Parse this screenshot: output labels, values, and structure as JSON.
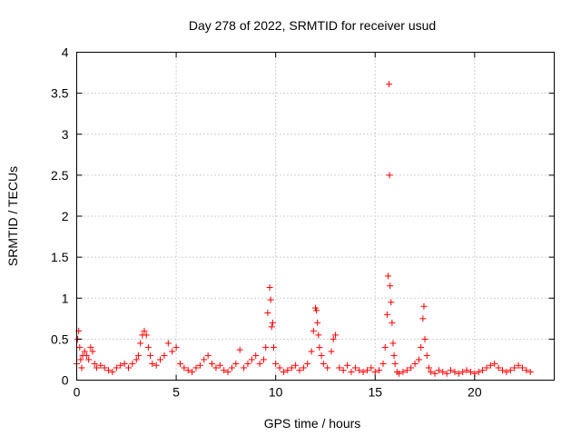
{
  "chart_data": {
    "type": "scatter",
    "title": "Day 278 of 2022, SRMTID for receiver usud",
    "xlabel": "GPS time / hours",
    "ylabel": "SRMTID / TECUs",
    "xlim": [
      0,
      24
    ],
    "ylim": [
      0,
      4
    ],
    "xticks": [
      0,
      5,
      10,
      15,
      20
    ],
    "xtick_labels": [
      "0",
      "5",
      "10",
      "15",
      "20"
    ],
    "yticks": [
      0,
      0.5,
      1,
      1.5,
      2,
      2.5,
      3,
      3.5,
      4
    ],
    "ytick_labels": [
      "0",
      "0.5",
      "1",
      "1.5",
      "2",
      "2.5",
      "3",
      "3.5",
      "4"
    ],
    "grid": true,
    "marker": "+",
    "color": "#ff0000",
    "series": [
      {
        "name": "SRMTID",
        "x": [
          0.0,
          0.05,
          0.1,
          0.15,
          0.2,
          0.25,
          0.3,
          0.4,
          0.5,
          0.6,
          0.7,
          0.8,
          0.9,
          1.0,
          1.2,
          1.4,
          1.6,
          1.8,
          2.0,
          2.2,
          2.4,
          2.6,
          2.8,
          3.0,
          3.1,
          3.2,
          3.3,
          3.4,
          3.5,
          3.6,
          3.7,
          3.8,
          4.0,
          4.2,
          4.4,
          4.6,
          4.8,
          5.0,
          5.2,
          5.4,
          5.6,
          5.8,
          6.0,
          6.2,
          6.4,
          6.6,
          6.8,
          7.0,
          7.2,
          7.4,
          7.6,
          7.8,
          8.0,
          8.2,
          8.4,
          8.6,
          8.8,
          9.0,
          9.2,
          9.4,
          9.5,
          9.6,
          9.7,
          9.75,
          9.8,
          9.85,
          9.9,
          10.0,
          10.2,
          10.4,
          10.6,
          10.8,
          11.0,
          11.2,
          11.4,
          11.6,
          11.8,
          11.9,
          12.0,
          12.05,
          12.1,
          12.15,
          12.2,
          12.3,
          12.4,
          12.6,
          12.8,
          12.9,
          13.0,
          13.2,
          13.4,
          13.6,
          13.8,
          14.0,
          14.2,
          14.4,
          14.6,
          14.8,
          15.0,
          15.2,
          15.4,
          15.5,
          15.6,
          15.65,
          15.7,
          15.72,
          15.75,
          15.8,
          15.85,
          15.9,
          15.95,
          16.0,
          16.1,
          16.2,
          16.4,
          16.6,
          16.8,
          17.0,
          17.2,
          17.3,
          17.4,
          17.45,
          17.5,
          17.6,
          17.7,
          17.8,
          18.0,
          18.2,
          18.4,
          18.6,
          18.8,
          19.0,
          19.2,
          19.4,
          19.6,
          19.8,
          20.0,
          20.2,
          20.4,
          20.6,
          20.8,
          21.0,
          21.2,
          21.4,
          21.6,
          21.8,
          22.0,
          22.2,
          22.4,
          22.6,
          22.8
        ],
        "y": [
          0.2,
          0.5,
          0.6,
          0.4,
          0.25,
          0.15,
          0.3,
          0.35,
          0.3,
          0.25,
          0.4,
          0.35,
          0.2,
          0.15,
          0.18,
          0.15,
          0.12,
          0.1,
          0.15,
          0.18,
          0.2,
          0.15,
          0.2,
          0.25,
          0.3,
          0.45,
          0.55,
          0.6,
          0.55,
          0.4,
          0.3,
          0.2,
          0.18,
          0.25,
          0.3,
          0.45,
          0.35,
          0.4,
          0.2,
          0.15,
          0.12,
          0.1,
          0.15,
          0.18,
          0.25,
          0.3,
          0.2,
          0.15,
          0.18,
          0.12,
          0.1,
          0.15,
          0.2,
          0.37,
          0.15,
          0.2,
          0.25,
          0.3,
          0.2,
          0.25,
          0.4,
          0.82,
          1.13,
          0.98,
          0.65,
          0.7,
          0.4,
          0.2,
          0.15,
          0.1,
          0.12,
          0.15,
          0.18,
          0.12,
          0.15,
          0.2,
          0.35,
          0.6,
          0.88,
          0.85,
          0.7,
          0.55,
          0.4,
          0.3,
          0.2,
          0.15,
          0.35,
          0.5,
          0.55,
          0.15,
          0.12,
          0.18,
          0.1,
          0.15,
          0.12,
          0.1,
          0.12,
          0.15,
          0.1,
          0.12,
          0.2,
          0.4,
          0.8,
          1.27,
          3.61,
          2.5,
          1.15,
          0.95,
          0.7,
          0.45,
          0.3,
          0.2,
          0.1,
          0.08,
          0.1,
          0.12,
          0.15,
          0.2,
          0.25,
          0.4,
          0.75,
          0.9,
          0.5,
          0.3,
          0.15,
          0.1,
          0.08,
          0.12,
          0.1,
          0.08,
          0.12,
          0.1,
          0.08,
          0.1,
          0.12,
          0.1,
          0.08,
          0.1,
          0.12,
          0.15,
          0.18,
          0.2,
          0.15,
          0.12,
          0.1,
          0.12,
          0.15,
          0.18,
          0.15,
          0.12,
          0.1
        ]
      }
    ]
  }
}
